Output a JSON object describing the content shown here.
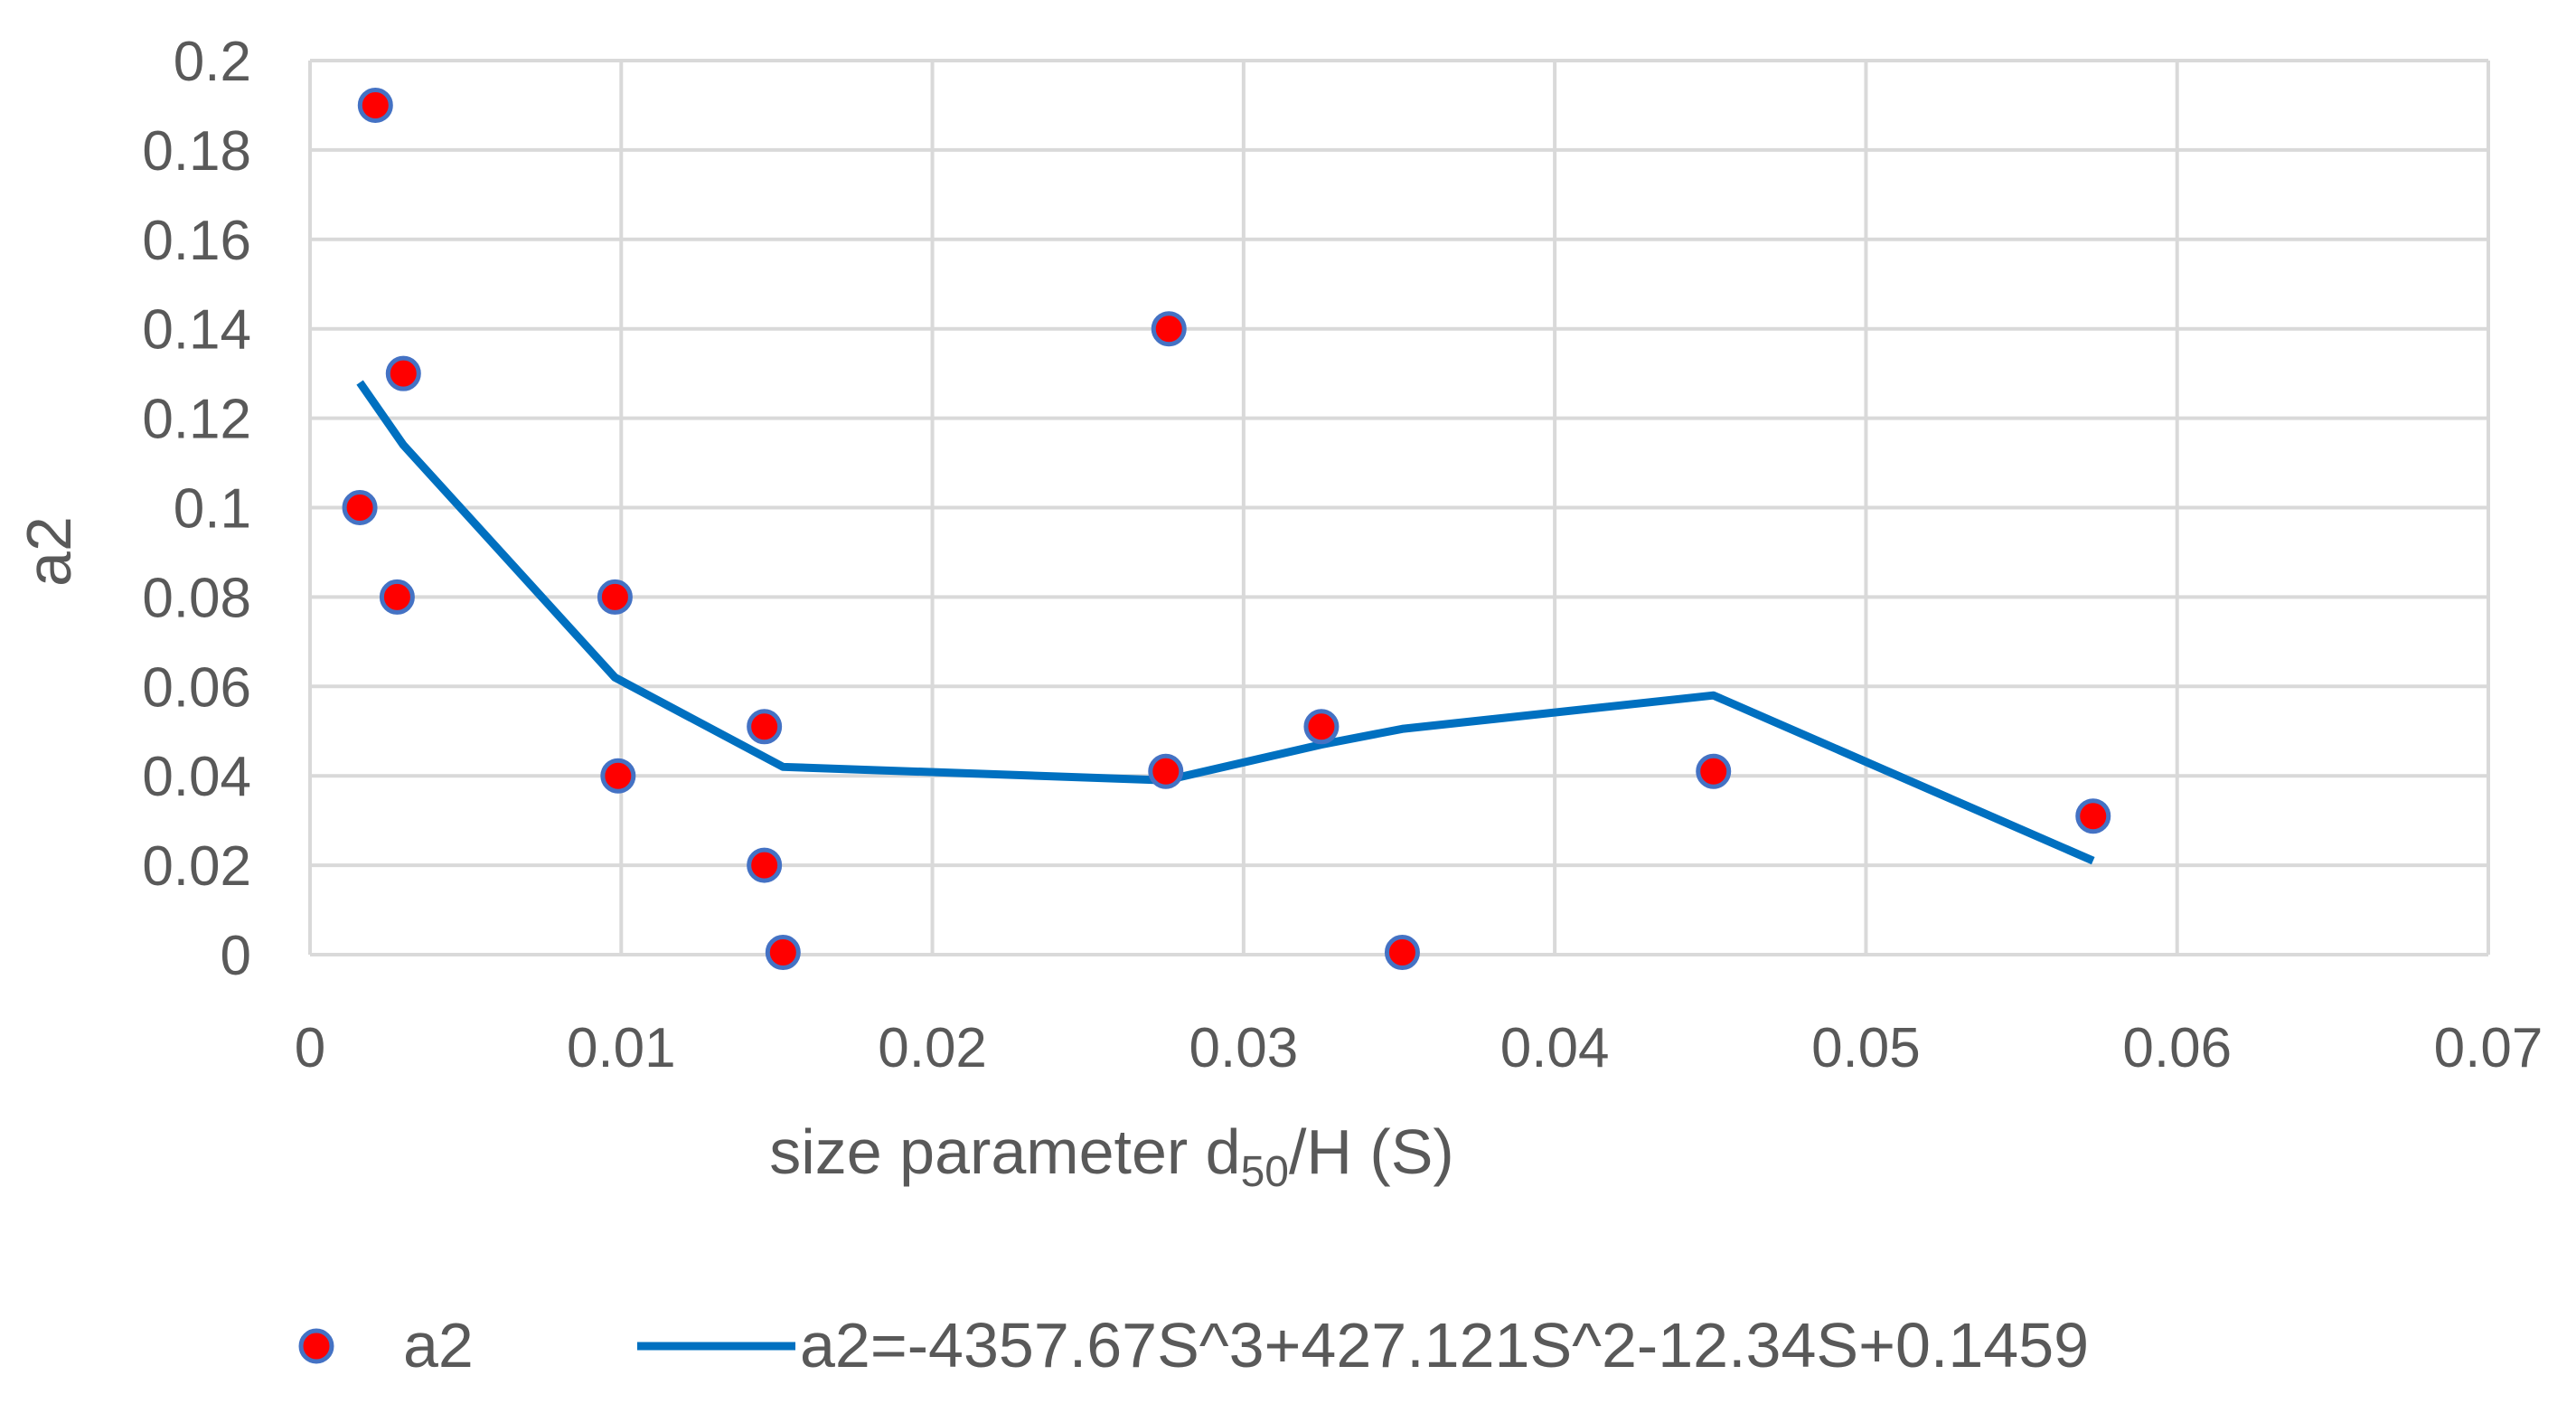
{
  "chart_data": {
    "type": "scatter",
    "xlabel_prefix": "size parameter d",
    "xlabel_sub": "50",
    "xlabel_suffix": "/H (S)",
    "ylabel": "a2",
    "xlim": [
      0,
      0.07
    ],
    "ylim": [
      0,
      0.2
    ],
    "x_ticks": [
      "0",
      "0.01",
      "0.02",
      "0.03",
      "0.04",
      "0.05",
      "0.06",
      "0.07"
    ],
    "y_ticks": [
      "0",
      "0.02",
      "0.04",
      "0.06",
      "0.08",
      "0.1",
      "0.12",
      "0.14",
      "0.16",
      "0.18",
      "0.2"
    ],
    "grid": true,
    "legend_position": "bottom",
    "series": [
      {
        "name": "a2",
        "kind": "markers",
        "color": "#ff0000",
        "edge_color": "#4472c4",
        "points": [
          {
            "x": 0.0021,
            "y": 0.19
          },
          {
            "x": 0.003,
            "y": 0.13
          },
          {
            "x": 0.0016,
            "y": 0.1
          },
          {
            "x": 0.0028,
            "y": 0.08
          },
          {
            "x": 0.0098,
            "y": 0.08
          },
          {
            "x": 0.0099,
            "y": 0.04
          },
          {
            "x": 0.0146,
            "y": 0.051
          },
          {
            "x": 0.0146,
            "y": 0.02
          },
          {
            "x": 0.0152,
            "y": 0.0005
          },
          {
            "x": 0.0276,
            "y": 0.14
          },
          {
            "x": 0.0275,
            "y": 0.041
          },
          {
            "x": 0.0325,
            "y": 0.051
          },
          {
            "x": 0.0351,
            "y": 0.0005
          },
          {
            "x": 0.0451,
            "y": 0.041
          },
          {
            "x": 0.0573,
            "y": 0.031
          }
        ]
      },
      {
        "name": "a2=-4357.67S^3+427.121S^2-12.34S+0.1459",
        "kind": "line",
        "color": "#0070c0",
        "points": [
          {
            "x": 0.0016,
            "y": 0.128
          },
          {
            "x": 0.003,
            "y": 0.114
          },
          {
            "x": 0.0098,
            "y": 0.062
          },
          {
            "x": 0.0152,
            "y": 0.042
          },
          {
            "x": 0.0275,
            "y": 0.039
          },
          {
            "x": 0.0325,
            "y": 0.047
          },
          {
            "x": 0.0351,
            "y": 0.0505
          },
          {
            "x": 0.0451,
            "y": 0.058
          },
          {
            "x": 0.0573,
            "y": 0.021
          }
        ]
      }
    ]
  }
}
